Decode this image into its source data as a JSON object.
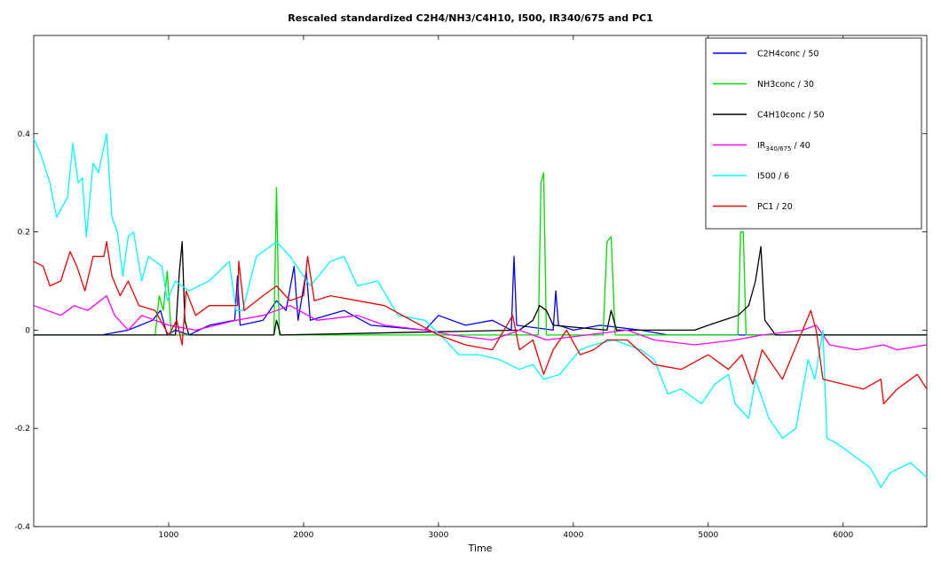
{
  "chart_data": {
    "type": "line",
    "title": "Rescaled standardized C2H4/NH3/C4H10, I500, IR340/675 and PC1",
    "xlabel": "Time",
    "ylabel": "",
    "xlim": [
      0,
      6620
    ],
    "ylim": [
      -0.4,
      0.6
    ],
    "xticks": [
      1000,
      2000,
      3000,
      4000,
      5000,
      6000
    ],
    "yticks": [
      -0.4,
      -0.2,
      0,
      0.2,
      0.4
    ],
    "ytick_labels": [
      "-0.4",
      "-0.2",
      "0",
      "0.2",
      "0.4"
    ],
    "grid": false,
    "legend_position": "top-right",
    "series": [
      {
        "name": "C2H4conc / 50",
        "color": "#0000ff",
        "points": [
          [
            0,
            -0.01
          ],
          [
            500,
            -0.01
          ],
          [
            700,
            0.0
          ],
          [
            880,
            0.02
          ],
          [
            940,
            0.04
          ],
          [
            990,
            -0.01
          ],
          [
            1050,
            0.0
          ],
          [
            1150,
            -0.01
          ],
          [
            1300,
            0.01
          ],
          [
            1490,
            0.02
          ],
          [
            1510,
            0.11
          ],
          [
            1530,
            0.01
          ],
          [
            1700,
            0.02
          ],
          [
            1800,
            0.06
          ],
          [
            1870,
            0.04
          ],
          [
            1930,
            0.13
          ],
          [
            1960,
            0.02
          ],
          [
            2020,
            0.12
          ],
          [
            2050,
            0.02
          ],
          [
            2300,
            0.04
          ],
          [
            2500,
            0.01
          ],
          [
            2900,
            0.0
          ],
          [
            3000,
            0.03
          ],
          [
            3200,
            0.01
          ],
          [
            3400,
            0.02
          ],
          [
            3540,
            0.0
          ],
          [
            3560,
            0.15
          ],
          [
            3580,
            0.01
          ],
          [
            3850,
            0.0
          ],
          [
            3870,
            0.08
          ],
          [
            3890,
            0.01
          ],
          [
            4000,
            0.0
          ],
          [
            4200,
            0.01
          ],
          [
            4500,
            0.0
          ],
          [
            4700,
            -0.01
          ],
          [
            6620,
            -0.01
          ]
        ]
      },
      {
        "name": "NH3conc / 30",
        "color": "#00dd00",
        "points": [
          [
            0,
            -0.01
          ],
          [
            900,
            -0.01
          ],
          [
            930,
            0.07
          ],
          [
            960,
            0.04
          ],
          [
            990,
            0.12
          ],
          [
            1020,
            -0.01
          ],
          [
            1780,
            -0.01
          ],
          [
            1800,
            0.29
          ],
          [
            1820,
            -0.01
          ],
          [
            3740,
            -0.01
          ],
          [
            3760,
            0.3
          ],
          [
            3780,
            0.32
          ],
          [
            3800,
            -0.01
          ],
          [
            4220,
            -0.01
          ],
          [
            4250,
            0.18
          ],
          [
            4280,
            0.19
          ],
          [
            4310,
            -0.01
          ],
          [
            5220,
            -0.01
          ],
          [
            5240,
            0.2
          ],
          [
            5260,
            0.2
          ],
          [
            5280,
            -0.01
          ],
          [
            6620,
            -0.01
          ]
        ]
      },
      {
        "name": "C4H10conc / 50",
        "color": "#000000",
        "points": [
          [
            0,
            -0.01
          ],
          [
            1050,
            -0.01
          ],
          [
            1080,
            0.12
          ],
          [
            1100,
            0.18
          ],
          [
            1120,
            0.02
          ],
          [
            1150,
            -0.01
          ],
          [
            1780,
            -0.01
          ],
          [
            1800,
            0.02
          ],
          [
            1830,
            -0.01
          ],
          [
            3600,
            0.0
          ],
          [
            3700,
            0.02
          ],
          [
            3750,
            0.05
          ],
          [
            3800,
            0.04
          ],
          [
            3850,
            0.01
          ],
          [
            4250,
            0.0
          ],
          [
            4280,
            0.04
          ],
          [
            4320,
            0.0
          ],
          [
            4900,
            0.0
          ],
          [
            5000,
            0.01
          ],
          [
            5220,
            0.03
          ],
          [
            5300,
            0.05
          ],
          [
            5350,
            0.1
          ],
          [
            5390,
            0.17
          ],
          [
            5420,
            0.02
          ],
          [
            5500,
            -0.01
          ],
          [
            6620,
            -0.01
          ]
        ]
      },
      {
        "name": "IR340/675 / 40",
        "color": "#ff00ff",
        "points": [
          [
            0,
            0.05
          ],
          [
            100,
            0.04
          ],
          [
            200,
            0.03
          ],
          [
            300,
            0.05
          ],
          [
            400,
            0.04
          ],
          [
            540,
            0.07
          ],
          [
            600,
            0.03
          ],
          [
            700,
            0.0
          ],
          [
            800,
            0.03
          ],
          [
            1000,
            0.01
          ],
          [
            1200,
            0.0
          ],
          [
            1500,
            0.02
          ],
          [
            1700,
            0.03
          ],
          [
            1900,
            0.05
          ],
          [
            2100,
            0.02
          ],
          [
            2400,
            0.03
          ],
          [
            2600,
            0.01
          ],
          [
            2900,
            0.0
          ],
          [
            3100,
            -0.01
          ],
          [
            3400,
            -0.02
          ],
          [
            3600,
            0.0
          ],
          [
            3800,
            -0.02
          ],
          [
            4100,
            -0.01
          ],
          [
            4400,
            0.0
          ],
          [
            4600,
            -0.02
          ],
          [
            4900,
            -0.03
          ],
          [
            5200,
            -0.02
          ],
          [
            5400,
            -0.01
          ],
          [
            5700,
            0.0
          ],
          [
            5800,
            0.01
          ],
          [
            5900,
            -0.03
          ],
          [
            6100,
            -0.04
          ],
          [
            6300,
            -0.03
          ],
          [
            6400,
            -0.04
          ],
          [
            6620,
            -0.03
          ]
        ]
      },
      {
        "name": "I500 / 6",
        "color": "#00ffff",
        "points": [
          [
            0,
            0.39
          ],
          [
            50,
            0.36
          ],
          [
            120,
            0.3
          ],
          [
            170,
            0.23
          ],
          [
            250,
            0.27
          ],
          [
            290,
            0.38
          ],
          [
            330,
            0.3
          ],
          [
            360,
            0.31
          ],
          [
            390,
            0.19
          ],
          [
            440,
            0.34
          ],
          [
            480,
            0.32
          ],
          [
            540,
            0.4
          ],
          [
            580,
            0.23
          ],
          [
            620,
            0.2
          ],
          [
            660,
            0.11
          ],
          [
            700,
            0.19
          ],
          [
            740,
            0.2
          ],
          [
            800,
            0.1
          ],
          [
            850,
            0.15
          ],
          [
            950,
            0.13
          ],
          [
            990,
            0.06
          ],
          [
            1050,
            0.1
          ],
          [
            1150,
            0.08
          ],
          [
            1300,
            0.1
          ],
          [
            1450,
            0.14
          ],
          [
            1500,
            0.04
          ],
          [
            1550,
            0.04
          ],
          [
            1650,
            0.15
          ],
          [
            1800,
            0.18
          ],
          [
            1900,
            0.15
          ],
          [
            2050,
            0.09
          ],
          [
            2200,
            0.14
          ],
          [
            2300,
            0.15
          ],
          [
            2400,
            0.09
          ],
          [
            2550,
            0.1
          ],
          [
            2700,
            0.03
          ],
          [
            2900,
            0.02
          ],
          [
            3050,
            -0.02
          ],
          [
            3150,
            -0.05
          ],
          [
            3300,
            -0.05
          ],
          [
            3450,
            -0.06
          ],
          [
            3600,
            -0.08
          ],
          [
            3700,
            -0.07
          ],
          [
            3780,
            -0.1
          ],
          [
            3900,
            -0.09
          ],
          [
            4050,
            -0.04
          ],
          [
            4150,
            -0.03
          ],
          [
            4300,
            -0.02
          ],
          [
            4500,
            -0.04
          ],
          [
            4600,
            -0.06
          ],
          [
            4700,
            -0.13
          ],
          [
            4800,
            -0.12
          ],
          [
            4950,
            -0.15
          ],
          [
            5050,
            -0.11
          ],
          [
            5150,
            -0.09
          ],
          [
            5200,
            -0.15
          ],
          [
            5300,
            -0.18
          ],
          [
            5350,
            -0.1
          ],
          [
            5450,
            -0.18
          ],
          [
            5550,
            -0.22
          ],
          [
            5650,
            -0.2
          ],
          [
            5740,
            -0.06
          ],
          [
            5790,
            -0.1
          ],
          [
            5850,
            0.0
          ],
          [
            5880,
            -0.22
          ],
          [
            5950,
            -0.23
          ],
          [
            6100,
            -0.26
          ],
          [
            6200,
            -0.28
          ],
          [
            6280,
            -0.32
          ],
          [
            6350,
            -0.29
          ],
          [
            6500,
            -0.27
          ],
          [
            6620,
            -0.3
          ]
        ]
      },
      {
        "name": "PC1 / 20",
        "color": "#ee0000",
        "points": [
          [
            0,
            0.14
          ],
          [
            70,
            0.13
          ],
          [
            120,
            0.09
          ],
          [
            200,
            0.1
          ],
          [
            270,
            0.16
          ],
          [
            320,
            0.13
          ],
          [
            380,
            0.08
          ],
          [
            440,
            0.15
          ],
          [
            520,
            0.15
          ],
          [
            540,
            0.18
          ],
          [
            580,
            0.11
          ],
          [
            640,
            0.07
          ],
          [
            700,
            0.1
          ],
          [
            780,
            0.05
          ],
          [
            900,
            0.04
          ],
          [
            1000,
            -0.01
          ],
          [
            1060,
            0.02
          ],
          [
            1100,
            -0.03
          ],
          [
            1130,
            0.08
          ],
          [
            1200,
            0.03
          ],
          [
            1300,
            0.05
          ],
          [
            1450,
            0.05
          ],
          [
            1510,
            0.05
          ],
          [
            1520,
            0.14
          ],
          [
            1560,
            0.04
          ],
          [
            1700,
            0.07
          ],
          [
            1800,
            0.09
          ],
          [
            1900,
            0.06
          ],
          [
            2000,
            0.07
          ],
          [
            2030,
            0.15
          ],
          [
            2080,
            0.06
          ],
          [
            2200,
            0.07
          ],
          [
            2400,
            0.06
          ],
          [
            2600,
            0.05
          ],
          [
            2800,
            0.02
          ],
          [
            3000,
            -0.01
          ],
          [
            3100,
            -0.02
          ],
          [
            3200,
            -0.03
          ],
          [
            3400,
            -0.04
          ],
          [
            3550,
            0.03
          ],
          [
            3600,
            -0.04
          ],
          [
            3700,
            -0.02
          ],
          [
            3780,
            -0.09
          ],
          [
            3850,
            -0.04
          ],
          [
            3950,
            0.0
          ],
          [
            4050,
            -0.05
          ],
          [
            4150,
            -0.04
          ],
          [
            4250,
            -0.02
          ],
          [
            4400,
            -0.02
          ],
          [
            4600,
            -0.07
          ],
          [
            4800,
            -0.08
          ],
          [
            5000,
            -0.05
          ],
          [
            5150,
            -0.08
          ],
          [
            5250,
            -0.05
          ],
          [
            5330,
            -0.11
          ],
          [
            5400,
            -0.04
          ],
          [
            5550,
            -0.1
          ],
          [
            5700,
            0.0
          ],
          [
            5760,
            0.04
          ],
          [
            5800,
            0.0
          ],
          [
            5850,
            -0.1
          ],
          [
            6000,
            -0.11
          ],
          [
            6150,
            -0.12
          ],
          [
            6280,
            -0.1
          ],
          [
            6300,
            -0.15
          ],
          [
            6400,
            -0.12
          ],
          [
            6550,
            -0.09
          ],
          [
            6620,
            -0.12
          ]
        ]
      }
    ]
  }
}
